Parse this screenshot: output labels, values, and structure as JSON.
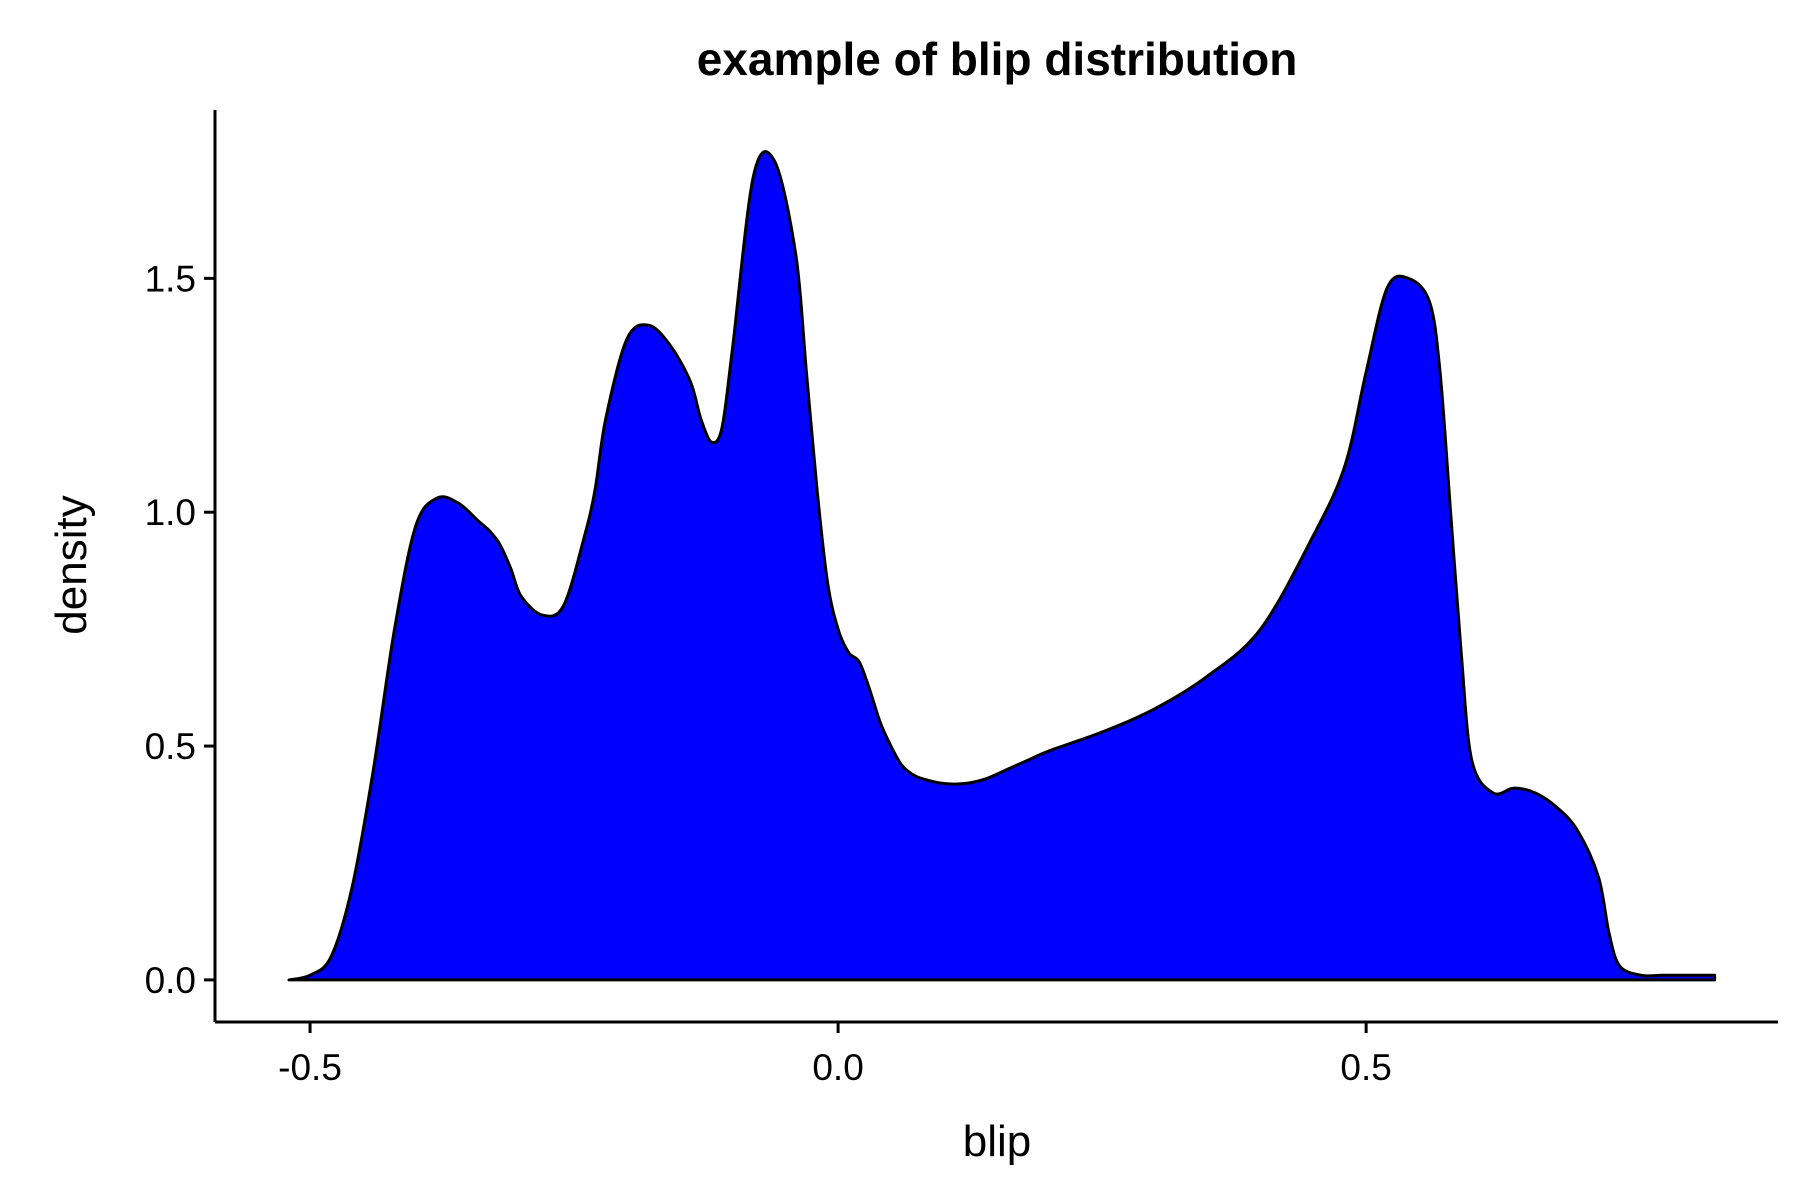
{
  "chart_data": {
    "type": "area",
    "title": "example of blip distribution",
    "xlabel": "blip",
    "ylabel": "density",
    "xlim": [
      -0.59,
      0.89
    ],
    "ylim": [
      -0.09,
      1.86
    ],
    "x_ticks": [
      -0.5,
      0.0,
      0.5
    ],
    "x_tick_labels": [
      "-0.5",
      "0.0",
      "0.5"
    ],
    "y_ticks": [
      0.0,
      0.5,
      1.0,
      1.5
    ],
    "y_tick_labels": [
      "0.0",
      "0.5",
      "1.0",
      "1.5"
    ],
    "fill_color": "#0000ff",
    "line_color": "#000000",
    "grid": false,
    "legend": "none",
    "series": [
      {
        "x": [
          -0.52,
          -0.5,
          -0.48,
          -0.46,
          -0.44,
          -0.42,
          -0.4,
          -0.38,
          -0.36,
          -0.34,
          -0.33,
          -0.32,
          -0.31,
          -0.3,
          -0.28,
          -0.26,
          -0.24,
          -0.23,
          -0.22,
          -0.2,
          -0.18,
          -0.16,
          -0.14,
          -0.13,
          -0.12,
          -0.11,
          -0.1,
          -0.08,
          -0.06,
          -0.04,
          -0.03,
          -0.02,
          -0.01,
          0.0,
          0.01,
          0.02,
          0.03,
          0.04,
          0.05,
          0.06,
          0.07,
          0.08,
          0.1,
          0.12,
          0.14,
          0.16,
          0.18,
          0.2,
          0.25,
          0.3,
          0.35,
          0.4,
          0.45,
          0.48,
          0.5,
          0.52,
          0.54,
          0.56,
          0.57,
          0.58,
          0.59,
          0.6,
          0.62,
          0.64,
          0.66,
          0.68,
          0.7,
          0.72,
          0.73,
          0.74,
          0.76,
          0.78,
          0.8,
          0.82,
          0.83
        ],
        "y": [
          0.0,
          0.01,
          0.05,
          0.2,
          0.45,
          0.75,
          0.97,
          1.03,
          1.02,
          0.98,
          0.96,
          0.93,
          0.88,
          0.82,
          0.78,
          0.8,
          0.95,
          1.05,
          1.2,
          1.37,
          1.4,
          1.36,
          1.28,
          1.2,
          1.15,
          1.18,
          1.35,
          1.72,
          1.75,
          1.55,
          1.3,
          1.05,
          0.85,
          0.75,
          0.7,
          0.68,
          0.62,
          0.55,
          0.5,
          0.46,
          0.44,
          0.43,
          0.42,
          0.42,
          0.43,
          0.45,
          0.47,
          0.49,
          0.53,
          0.58,
          0.65,
          0.75,
          0.95,
          1.1,
          1.3,
          1.48,
          1.5,
          1.45,
          1.3,
          1.0,
          0.7,
          0.47,
          0.4,
          0.41,
          0.4,
          0.37,
          0.32,
          0.22,
          0.1,
          0.03,
          0.01,
          0.01,
          0.01,
          0.01,
          0.01
        ]
      }
    ]
  }
}
